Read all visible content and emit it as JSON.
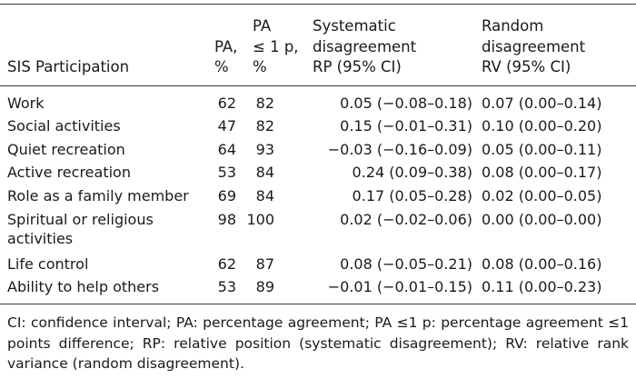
{
  "header": {
    "col1": "SIS Participation",
    "col2_line1": "PA,",
    "col2_line2": "%",
    "col3_line1": "PA",
    "col3_line2": "≤ 1 p,",
    "col3_line3": "%",
    "col4_line1": "Systematic",
    "col4_line2": "disagreement",
    "col4_line3": "RP (95% CI)",
    "col5_line1": "Random",
    "col5_line2": "disagreement",
    "col5_line3": "RV (95% CI)"
  },
  "rows": [
    {
      "label": "Work",
      "label2": "",
      "pa": "62",
      "pa1": "82",
      "rp": "0.05 (−0.08–0.18)",
      "rv": "0.07 (0.00–0.14)"
    },
    {
      "label": "Social activities",
      "label2": "",
      "pa": "47",
      "pa1": "82",
      "rp": "0.15 (−0.01–0.31)",
      "rv": "0.10 (0.00–0.20)"
    },
    {
      "label": "Quiet recreation",
      "label2": "",
      "pa": "64",
      "pa1": "93",
      "rp": "−0.03 (−0.16–0.09)",
      "rv": "0.05 (0.00–0.11)"
    },
    {
      "label": "Active recreation",
      "label2": "",
      "pa": "53",
      "pa1": "84",
      "rp": "0.24 (0.09–0.38)",
      "rv": "0.08 (0.00–0.17)"
    },
    {
      "label": "Role as a family member",
      "label2": "",
      "pa": "69",
      "pa1": "84",
      "rp": "0.17 (0.05–0.28)",
      "rv": "0.02 (0.00–0.05)"
    },
    {
      "label": "Spiritual or religious",
      "label2": "activities",
      "pa": "98",
      "pa1": "100",
      "rp": "0.02 (−0.02–0.06)",
      "rv": "0.00 (0.00–0.00)"
    },
    {
      "label": "Life control",
      "label2": "",
      "pa": "62",
      "pa1": "87",
      "rp": "0.08 (−0.05–0.21)",
      "rv": "0.08 (0.00–0.16)"
    },
    {
      "label": "Ability to help others",
      "label2": "",
      "pa": "53",
      "pa1": "89",
      "rp": "−0.01 (−0.01–0.15)",
      "rv": "0.11 (0.00–0.23)"
    }
  ],
  "footnote": "CI: confidence interval; PA: percentage agreement; PA ≤1 p: percentage agreement ≤1 points difference; RP: relative position (systematic disagreement); RV: relative rank variance (random disagreement)."
}
